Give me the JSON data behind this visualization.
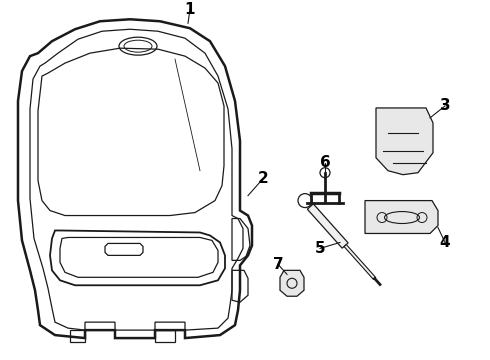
{
  "background_color": "#ffffff",
  "line_color": "#1a1a1a",
  "label_color": "#000000",
  "figsize": [
    4.9,
    3.6
  ],
  "dpi": 100,
  "label_fontsize": 11
}
